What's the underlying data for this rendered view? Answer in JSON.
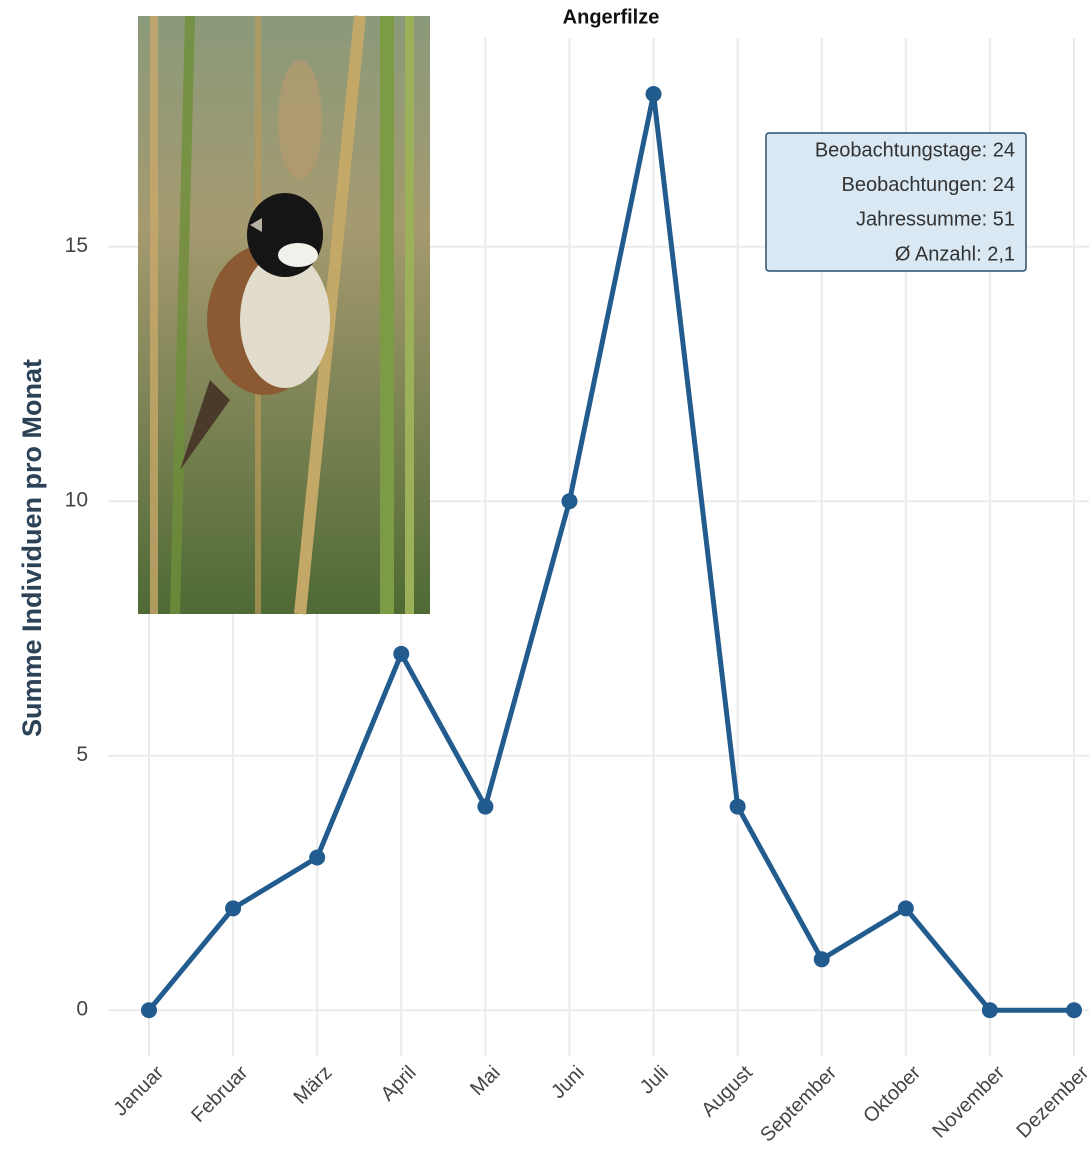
{
  "chart_data": {
    "type": "line",
    "title": "Angerfilze",
    "y_label": "Summe Individuen pro Monat",
    "categories": [
      "Januar",
      "Februar",
      "März",
      "April",
      "Mai",
      "Juni",
      "Juli",
      "August",
      "September",
      "Oktober",
      "November",
      "Dezember"
    ],
    "values": [
      0,
      2,
      3,
      7,
      4,
      10,
      18,
      4,
      1,
      2,
      0,
      0
    ],
    "color": "#225b8d",
    "ylim": [
      -0.9,
      19.1
    ],
    "yticks": [
      0,
      5,
      10,
      15
    ],
    "grid": true,
    "annotations": [
      "Beobachtungstage: 24",
      "Beobachtungen: 24",
      "Jahressumme: 51",
      "Ø Anzahl: 2,1"
    ]
  }
}
